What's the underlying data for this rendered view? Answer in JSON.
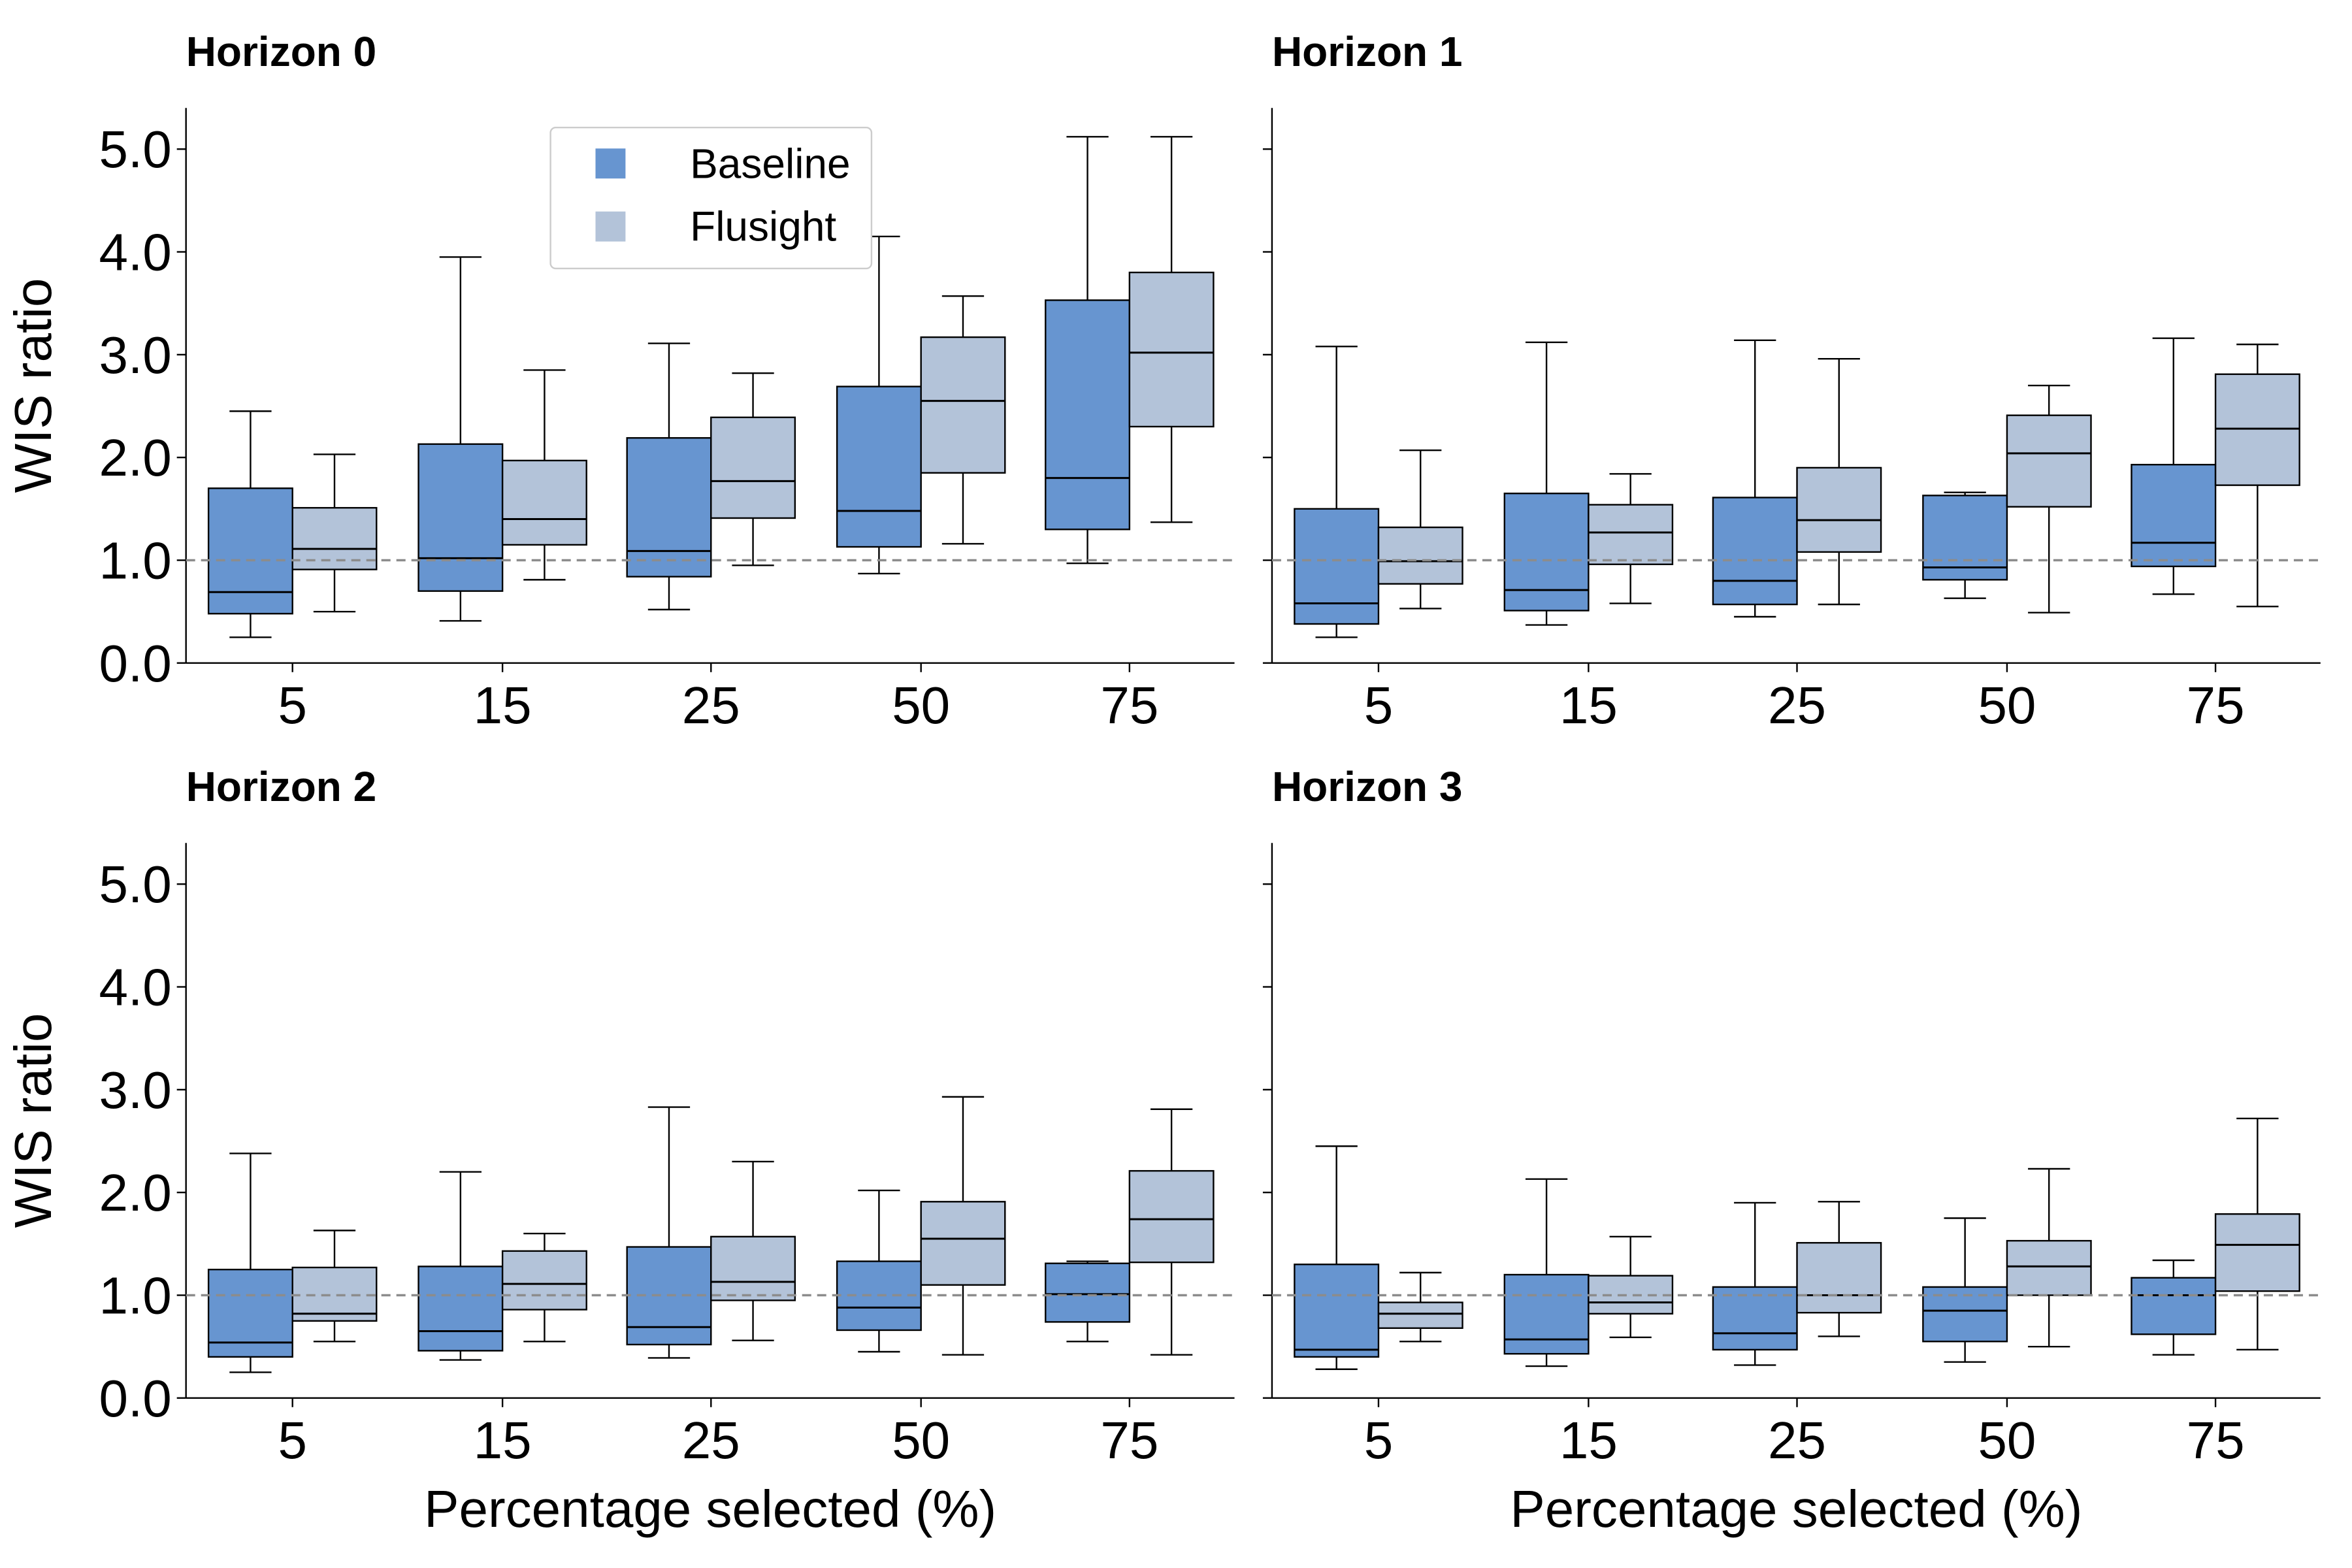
{
  "chart_data": {
    "type": "box",
    "categories": [
      "5",
      "15",
      "25",
      "50",
      "75"
    ],
    "xlabel": "Percentage selected (%)",
    "ylabel": "WIS ratio",
    "ylim": [
      0,
      5.4
    ],
    "yticks": [
      "0.0",
      "1.0",
      "2.0",
      "3.0",
      "4.0",
      "5.0"
    ],
    "reference_line": 1.0,
    "legend": {
      "placement": "upper-center of first panel",
      "items": [
        {
          "name": "Baseline",
          "color": "#6795d0"
        },
        {
          "name": "Flusight",
          "color": "#b3c3d9"
        }
      ]
    },
    "panels": [
      {
        "title": "Horizon 0",
        "series": [
          {
            "name": "Baseline",
            "boxes": [
              {
                "whislo": 0.25,
                "q1": 0.48,
                "med": 0.69,
                "q3": 1.7,
                "whishi": 2.45
              },
              {
                "whislo": 0.41,
                "q1": 0.7,
                "med": 1.02,
                "q3": 2.13,
                "whishi": 3.95
              },
              {
                "whislo": 0.52,
                "q1": 0.84,
                "med": 1.09,
                "q3": 2.19,
                "whishi": 3.11
              },
              {
                "whislo": 0.87,
                "q1": 1.13,
                "med": 1.48,
                "q3": 2.69,
                "whishi": 4.15
              },
              {
                "whislo": 0.97,
                "q1": 1.3,
                "med": 1.8,
                "q3": 3.53,
                "whishi": 5.12
              }
            ]
          },
          {
            "name": "Flusight",
            "boxes": [
              {
                "whislo": 0.5,
                "q1": 0.91,
                "med": 1.11,
                "q3": 1.51,
                "whishi": 2.03
              },
              {
                "whislo": 0.81,
                "q1": 1.15,
                "med": 1.4,
                "q3": 1.97,
                "whishi": 2.85
              },
              {
                "whislo": 0.95,
                "q1": 1.41,
                "med": 1.77,
                "q3": 2.39,
                "whishi": 2.82
              },
              {
                "whislo": 1.16,
                "q1": 1.85,
                "med": 2.55,
                "q3": 3.17,
                "whishi": 3.57
              },
              {
                "whislo": 1.37,
                "q1": 2.3,
                "med": 3.02,
                "q3": 3.8,
                "whishi": 5.12
              }
            ]
          }
        ]
      },
      {
        "title": "Horizon 1",
        "series": [
          {
            "name": "Baseline",
            "boxes": [
              {
                "whislo": 0.25,
                "q1": 0.38,
                "med": 0.58,
                "q3": 1.5,
                "whishi": 3.08
              },
              {
                "whislo": 0.37,
                "q1": 0.51,
                "med": 0.71,
                "q3": 1.65,
                "whishi": 3.12
              },
              {
                "whislo": 0.45,
                "q1": 0.57,
                "med": 0.8,
                "q3": 1.61,
                "whishi": 3.14
              },
              {
                "whislo": 0.63,
                "q1": 0.81,
                "med": 0.93,
                "q3": 1.63,
                "whishi": 1.66
              },
              {
                "whislo": 0.67,
                "q1": 0.94,
                "med": 1.17,
                "q3": 1.93,
                "whishi": 3.16
              }
            ]
          },
          {
            "name": "Flusight",
            "boxes": [
              {
                "whislo": 0.53,
                "q1": 0.77,
                "med": 0.99,
                "q3": 1.32,
                "whishi": 2.07
              },
              {
                "whislo": 0.58,
                "q1": 0.96,
                "med": 1.27,
                "q3": 1.54,
                "whishi": 1.84
              },
              {
                "whislo": 0.57,
                "q1": 1.08,
                "med": 1.39,
                "q3": 1.9,
                "whishi": 2.96
              },
              {
                "whislo": 0.49,
                "q1": 1.52,
                "med": 2.04,
                "q3": 2.41,
                "whishi": 2.7
              },
              {
                "whislo": 0.55,
                "q1": 1.73,
                "med": 2.28,
                "q3": 2.81,
                "whishi": 3.1
              }
            ]
          }
        ]
      },
      {
        "title": "Horizon 2",
        "series": [
          {
            "name": "Baseline",
            "boxes": [
              {
                "whislo": 0.25,
                "q1": 0.4,
                "med": 0.54,
                "q3": 1.25,
                "whishi": 2.38
              },
              {
                "whislo": 0.37,
                "q1": 0.46,
                "med": 0.65,
                "q3": 1.28,
                "whishi": 2.2
              },
              {
                "whislo": 0.39,
                "q1": 0.52,
                "med": 0.69,
                "q3": 1.47,
                "whishi": 2.83
              },
              {
                "whislo": 0.45,
                "q1": 0.66,
                "med": 0.88,
                "q3": 1.33,
                "whishi": 2.02
              },
              {
                "whislo": 0.55,
                "q1": 0.74,
                "med": 1.01,
                "q3": 1.31,
                "whishi": 1.33
              }
            ]
          },
          {
            "name": "Flusight",
            "boxes": [
              {
                "whislo": 0.55,
                "q1": 0.75,
                "med": 0.82,
                "q3": 1.27,
                "whishi": 1.63
              },
              {
                "whislo": 0.55,
                "q1": 0.86,
                "med": 1.11,
                "q3": 1.43,
                "whishi": 1.6
              },
              {
                "whislo": 0.56,
                "q1": 0.95,
                "med": 1.13,
                "q3": 1.57,
                "whishi": 2.3
              },
              {
                "whislo": 0.42,
                "q1": 1.1,
                "med": 1.55,
                "q3": 1.91,
                "whishi": 2.93
              },
              {
                "whislo": 0.42,
                "q1": 1.32,
                "med": 1.74,
                "q3": 2.21,
                "whishi": 2.81
              }
            ]
          }
        ]
      },
      {
        "title": "Horizon 3",
        "series": [
          {
            "name": "Baseline",
            "boxes": [
              {
                "whislo": 0.28,
                "q1": 0.4,
                "med": 0.47,
                "q3": 1.3,
                "whishi": 2.45
              },
              {
                "whislo": 0.31,
                "q1": 0.43,
                "med": 0.57,
                "q3": 1.2,
                "whishi": 2.13
              },
              {
                "whislo": 0.32,
                "q1": 0.47,
                "med": 0.63,
                "q3": 1.08,
                "whishi": 1.9
              },
              {
                "whislo": 0.35,
                "q1": 0.55,
                "med": 0.85,
                "q3": 1.08,
                "whishi": 1.75
              },
              {
                "whislo": 0.42,
                "q1": 0.62,
                "med": 1.0,
                "q3": 1.17,
                "whishi": 1.34
              }
            ]
          },
          {
            "name": "Flusight",
            "boxes": [
              {
                "whislo": 0.55,
                "q1": 0.68,
                "med": 0.82,
                "q3": 0.93,
                "whishi": 1.22
              },
              {
                "whislo": 0.59,
                "q1": 0.82,
                "med": 0.93,
                "q3": 1.19,
                "whishi": 1.57
              },
              {
                "whislo": 0.6,
                "q1": 0.83,
                "med": 1.0,
                "q3": 1.51,
                "whishi": 1.91
              },
              {
                "whislo": 0.5,
                "q1": 1.0,
                "med": 1.28,
                "q3": 1.53,
                "whishi": 2.23
              },
              {
                "whislo": 0.47,
                "q1": 1.04,
                "med": 1.49,
                "q3": 1.79,
                "whishi": 2.72
              }
            ]
          }
        ]
      }
    ]
  }
}
